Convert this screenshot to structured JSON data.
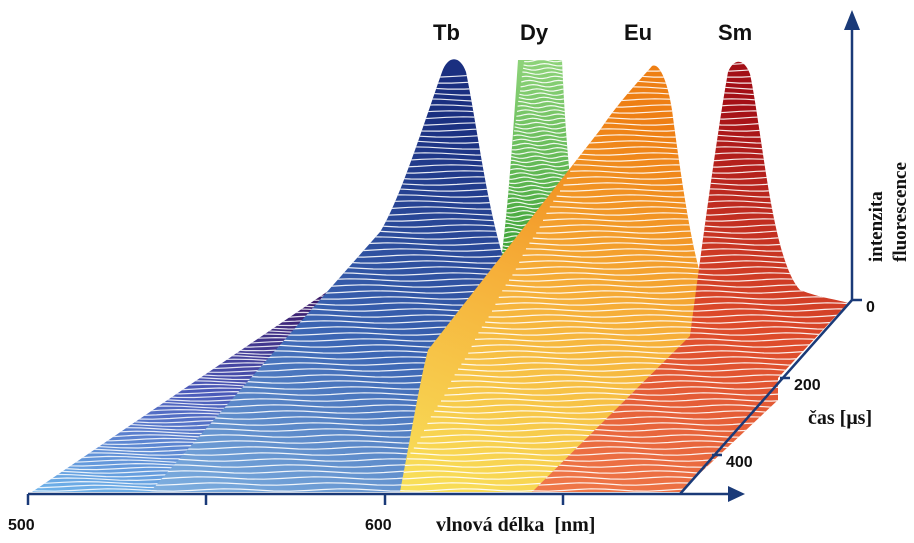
{
  "chart_data": {
    "type": "area",
    "peak_labels": [
      "Tb",
      "Dy",
      "Eu",
      "Sm"
    ],
    "x_axis": {
      "label": "vlnová délka  [nm]",
      "ticks": [
        500,
        600
      ],
      "range_nm": [
        500,
        700
      ]
    },
    "time_axis": {
      "label": "čas [μs]",
      "ticks": [
        0,
        200,
        400
      ],
      "range_us": [
        0,
        500
      ]
    },
    "z_axis": {
      "label_line1": "intenzita",
      "label_line2": "fluorescence"
    },
    "series": [
      {
        "name": "Tb",
        "peak_nm": 545,
        "relative_height": 0.95,
        "decay": "long",
        "color": "#1f3f8f"
      },
      {
        "name": "Dy",
        "peak_nm": 575,
        "relative_height": 1.0,
        "decay": "short",
        "color": "#4fb23a"
      },
      {
        "name": "Eu",
        "peak_nm": 615,
        "relative_height": 0.92,
        "decay": "long",
        "color": "#ef8a1a"
      },
      {
        "name": "Sm",
        "peak_nm": 645,
        "relative_height": 0.9,
        "decay": "short",
        "color": "#c11f1f"
      }
    ]
  }
}
